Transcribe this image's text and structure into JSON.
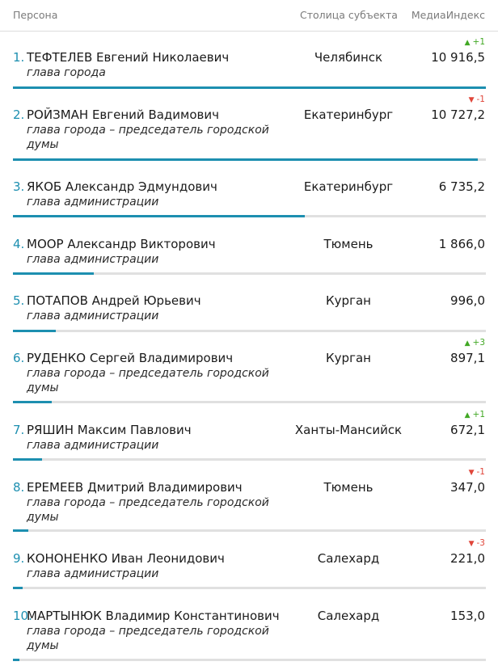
{
  "header": {
    "person": "Персона",
    "capital": "Столица субъекта",
    "index": "МедиаИндекс"
  },
  "rows": [
    {
      "rank": "1.",
      "name": "ТЕФТЕЛЕВ Евгений Николаевич",
      "role": "глава города",
      "city": "Челябинск",
      "value": "10 916,5",
      "delta": "+1",
      "trend": "up",
      "share": 1.0
    },
    {
      "rank": "2.",
      "name": "РОЙЗМАН Евгений Вадимович",
      "role": "глава города – председатель городской думы",
      "city": "Екатеринбург",
      "value": "10 727,2",
      "delta": "-1",
      "trend": "down",
      "share": 0.983
    },
    {
      "rank": "3.",
      "name": "ЯКОБ Александр Эдмундович",
      "role": "глава администрации",
      "city": "Екатеринбург",
      "value": "6 735,2",
      "delta": "",
      "trend": "none",
      "share": 0.617
    },
    {
      "rank": "4.",
      "name": "МООР Александр Викторович",
      "role": "глава администрации",
      "city": "Тюмень",
      "value": "1 866,0",
      "delta": "",
      "trend": "none",
      "share": 0.171
    },
    {
      "rank": "5.",
      "name": "ПОТАПОВ Андрей Юрьевич",
      "role": "глава администрации",
      "city": "Курган",
      "value": "996,0",
      "delta": "",
      "trend": "none",
      "share": 0.091
    },
    {
      "rank": "6.",
      "name": "РУДЕНКО Сергей Владимирович",
      "role": "глава города – председатель городской думы",
      "city": "Курган",
      "value": "897,1",
      "delta": "+3",
      "trend": "up",
      "share": 0.082
    },
    {
      "rank": "7.",
      "name": "РЯШИН Максим Павлович",
      "role": "глава администрации",
      "city": "Ханты-Мансийск",
      "value": "672,1",
      "delta": "+1",
      "trend": "up",
      "share": 0.062
    },
    {
      "rank": "8.",
      "name": "ЕРЕМЕЕВ Дмитрий Владимирович",
      "role": "глава города – председатель городской думы",
      "city": "Тюмень",
      "value": "347,0",
      "delta": "-1",
      "trend": "down",
      "share": 0.032
    },
    {
      "rank": "9.",
      "name": "КОНОНЕНКО Иван Леонидович",
      "role": "глава администрации",
      "city": "Салехард",
      "value": "221,0",
      "delta": "-3",
      "trend": "down",
      "share": 0.02
    },
    {
      "rank": "10.",
      "name": "МАРТЫНЮК Владимир Константинович",
      "role": "глава города – председатель городской думы",
      "city": "Салехард",
      "value": "153,0",
      "delta": "",
      "trend": "none",
      "share": 0.014
    }
  ],
  "colors": {
    "accent": "#1d8fb0",
    "up": "#41a824",
    "down": "#e0463a",
    "track": "#e0e0e0"
  }
}
